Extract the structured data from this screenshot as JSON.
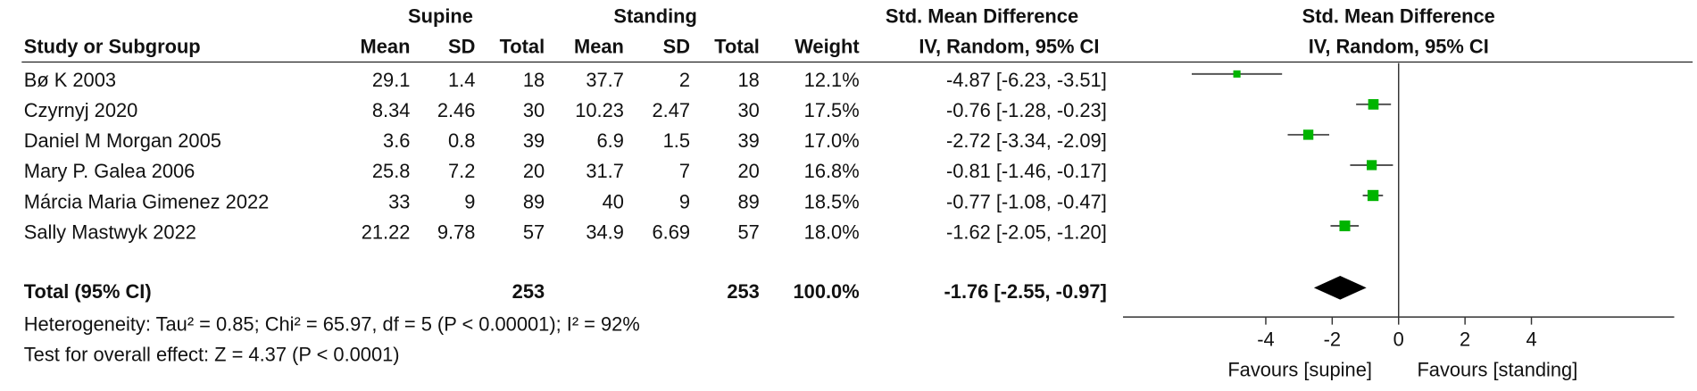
{
  "table": {
    "group_headers": [
      "Supine",
      "Standing",
      "Std. Mean Difference"
    ],
    "columns": [
      "Study or Subgroup",
      "Mean",
      "SD",
      "Total",
      "Mean",
      "SD",
      "Total",
      "Weight",
      "IV, Random, 95% CI"
    ],
    "rows": [
      [
        "Bø K 2003",
        "29.1",
        "1.4",
        "18",
        "37.7",
        "2",
        "18",
        "12.1%",
        "-4.87 [-6.23, -3.51]"
      ],
      [
        "Czyrnyj 2020",
        "8.34",
        "2.46",
        "30",
        "10.23",
        "2.47",
        "30",
        "17.5%",
        "-0.76 [-1.28, -0.23]"
      ],
      [
        "Daniel M Morgan 2005",
        "3.6",
        "0.8",
        "39",
        "6.9",
        "1.5",
        "39",
        "17.0%",
        "-2.72 [-3.34, -2.09]"
      ],
      [
        "Mary P. Galea 2006",
        "25.8",
        "7.2",
        "20",
        "31.7",
        "7",
        "20",
        "16.8%",
        "-0.81 [-1.46, -0.17]"
      ],
      [
        "Márcia Maria Gimenez 2022",
        "33",
        "9",
        "89",
        "40",
        "9",
        "89",
        "18.5%",
        "-0.77 [-1.08, -0.47]"
      ],
      [
        "Sally Mastwyk 2022",
        "21.22",
        "9.78",
        "57",
        "34.9",
        "6.69",
        "57",
        "18.0%",
        "-1.62 [-2.05, -1.20]"
      ]
    ],
    "total": {
      "label": "Total (95% CI)",
      "total_supine": "253",
      "total_standing": "253",
      "weight": "100.0%",
      "ci": "-1.76 [-2.55, -0.97]"
    },
    "heterogeneity": "Heterogeneity: Tau² = 0.85; Chi² = 65.97, df = 5 (P < 0.00001); I² = 92%",
    "overall_effect": "Test for overall effect: Z = 4.37 (P < 0.0001)"
  },
  "chart_data": {
    "type": "forest",
    "title": "Std. Mean Difference",
    "subtitle": "IV, Random, 95% CI",
    "values": [
      -4.87,
      -0.76,
      -2.72,
      -0.81,
      -0.77,
      -1.62
    ],
    "ci_low": [
      -6.23,
      -1.28,
      -3.34,
      -1.46,
      -1.08,
      -2.05
    ],
    "ci_high": [
      -3.51,
      -0.23,
      -2.09,
      -0.17,
      -0.47,
      -1.2
    ],
    "weights": [
      12.1,
      17.5,
      17.0,
      16.8,
      18.5,
      18.0
    ],
    "total": {
      "value": -1.76,
      "ci_low": -2.55,
      "ci_high": -0.97
    },
    "xlim": [
      -8.3,
      8.3
    ],
    "xticks": [
      -4,
      -2,
      0,
      2,
      4
    ],
    "color": "#00b400",
    "x_labels": [
      "Favours [supine]",
      "Favours [standing]"
    ]
  }
}
